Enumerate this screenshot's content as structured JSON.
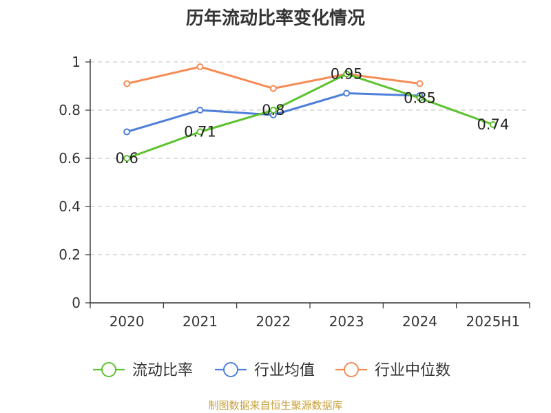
{
  "title": "历年流动比率变化情况",
  "source": "制图数据来自恒生聚源数据库",
  "chart_data": {
    "type": "line",
    "title": "历年流动比率变化情况",
    "xlabel": "",
    "ylabel": "",
    "categories": [
      "2020",
      "2021",
      "2022",
      "2023",
      "2024",
      "2025H1"
    ],
    "ylim": [
      0,
      1
    ],
    "yticks": [
      0,
      0.2,
      0.4,
      0.6,
      0.8,
      1
    ],
    "ytick_labels": [
      "0",
      "0.2",
      "0.4",
      "0.6",
      "0.8",
      "1"
    ],
    "grid": true,
    "legend_position": "bottom",
    "series": [
      {
        "name": "流动比率",
        "color": "#5cc22e",
        "values": [
          0.6,
          0.71,
          0.8,
          0.95,
          0.85,
          0.74
        ],
        "data_labels": [
          "0.6",
          "0.71",
          "0.8",
          "0.95",
          "0.85",
          "0.74"
        ]
      },
      {
        "name": "行业均值",
        "color": "#4e7fd9",
        "values": [
          0.71,
          0.8,
          0.78,
          0.87,
          0.86,
          null
        ]
      },
      {
        "name": "行业中位数",
        "color": "#f58c56",
        "values": [
          0.91,
          0.98,
          0.89,
          0.95,
          0.91,
          null
        ]
      }
    ]
  }
}
